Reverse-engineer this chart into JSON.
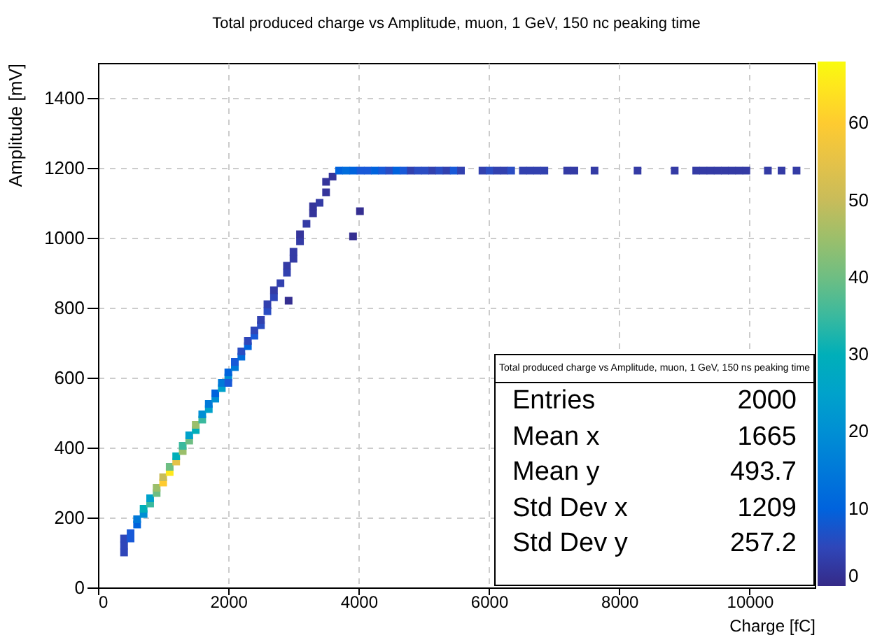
{
  "chart_data": {
    "type": "scatter",
    "title": "Total produced charge vs Amplitude, muon, 1 GeV, 150 nc peaking time",
    "xlabel": "Charge [fC]",
    "ylabel": "Amplitude [mV]",
    "xlim": [
      0,
      11000
    ],
    "xticks": [
      0,
      2000,
      4000,
      6000,
      8000,
      10000
    ],
    "ylim": [
      0,
      1500
    ],
    "yticks": [
      0,
      200,
      400,
      600,
      800,
      1000,
      1200,
      1400
    ],
    "grid": true,
    "marker": "square",
    "clim": [
      0,
      68
    ],
    "cticks": [
      0,
      10,
      20,
      30,
      40,
      50,
      60
    ],
    "x": [
      400,
      400,
      400,
      500,
      500,
      600,
      600,
      700,
      700,
      800,
      800,
      900,
      900,
      1000,
      1000,
      1100,
      1100,
      1200,
      1200,
      1300,
      1300,
      1400,
      1400,
      1500,
      1500,
      1600,
      1600,
      1700,
      1700,
      1800,
      1800,
      1900,
      1900,
      2000,
      2000,
      2000,
      2100,
      2100,
      2200,
      2200,
      2300,
      2300,
      2400,
      2400,
      2500,
      2500,
      2600,
      2600,
      2700,
      2700,
      2800,
      2900,
      2900,
      3000,
      3000,
      3100,
      3100,
      3200,
      3300,
      3300,
      3400,
      3500,
      3500,
      3600,
      2925,
      3914,
      4020,
      3700,
      3810,
      3920,
      4030,
      4140,
      4250,
      4360,
      4470,
      4580,
      4690,
      4800,
      4910,
      5020,
      5130,
      5240,
      5350,
      5460,
      5570,
      5900,
      6010,
      6120,
      6230,
      6340,
      6520,
      6630,
      6740,
      6850,
      7200,
      7310,
      7620,
      8280,
      8850,
      9180,
      9290,
      9400,
      9510,
      9620,
      9730,
      9840,
      9950,
      10280,
      10490,
      10720
    ],
    "values": [
      100,
      120,
      140,
      140,
      155,
      180,
      195,
      210,
      225,
      240,
      255,
      270,
      285,
      300,
      315,
      330,
      345,
      360,
      375,
      390,
      405,
      420,
      435,
      450,
      465,
      480,
      495,
      510,
      525,
      540,
      555,
      570,
      585,
      600,
      615,
      585,
      630,
      645,
      660,
      675,
      690,
      705,
      720,
      735,
      750,
      765,
      790,
      810,
      830,
      850,
      870,
      900,
      920,
      940,
      960,
      990,
      1010,
      1040,
      1070,
      1090,
      1100,
      1130,
      1160,
      1175,
      820,
      1004,
      1076,
      1192,
      1192,
      1192,
      1192,
      1192,
      1192,
      1192,
      1192,
      1192,
      1192,
      1192,
      1192,
      1192,
      1192,
      1192,
      1192,
      1192,
      1192,
      1192,
      1192,
      1192,
      1192,
      1192,
      1192,
      1192,
      1192,
      1192,
      1192,
      1192,
      1192,
      1192,
      1192,
      1192,
      1192,
      1192,
      1192,
      1192,
      1192,
      1192,
      1192,
      1192,
      1192,
      1192
    ],
    "cvalues": [
      5,
      5,
      5,
      8,
      8,
      10,
      15,
      20,
      30,
      35,
      25,
      40,
      45,
      60,
      50,
      65,
      40,
      55,
      30,
      45,
      35,
      40,
      25,
      30,
      45,
      35,
      20,
      25,
      15,
      20,
      10,
      25,
      15,
      20,
      10,
      8,
      15,
      8,
      12,
      6,
      10,
      5,
      8,
      5,
      6,
      4,
      6,
      4,
      5,
      3,
      4,
      4,
      3,
      3,
      3,
      3,
      2,
      3,
      2,
      2,
      3,
      2,
      2,
      2,
      1,
      1,
      1,
      10,
      12,
      10,
      8,
      8,
      10,
      8,
      6,
      10,
      8,
      4,
      6,
      6,
      4,
      6,
      4,
      8,
      4,
      4,
      6,
      4,
      4,
      6,
      4,
      4,
      4,
      4,
      3,
      3,
      3,
      3,
      3,
      3,
      3,
      3,
      3,
      3,
      3,
      3,
      3,
      3,
      3,
      3
    ],
    "annotations": [
      "Total produced charge vs Amplitude, muon, 1 GeV, 150 ns peaking time",
      "Entries",
      "2000",
      "Mean x",
      "1665",
      "Mean y",
      "493.7",
      "Std Dev x",
      "1209",
      "Std Dev y",
      "257.2"
    ]
  }
}
